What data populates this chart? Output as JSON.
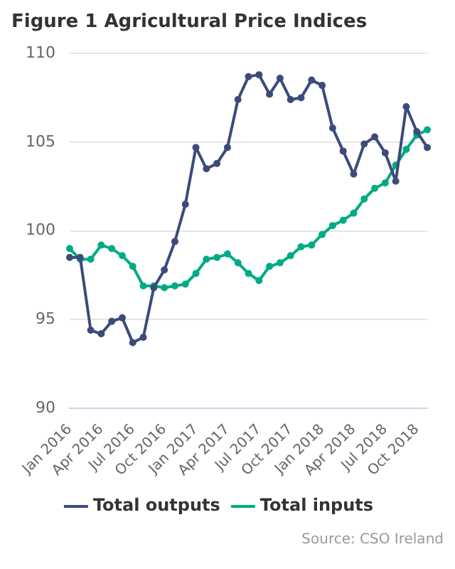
{
  "chart_data": {
    "type": "line",
    "title": "Figure 1 Agricultural Price Indices",
    "categories": [
      "Jan 2016",
      null,
      null,
      "Apr 2016",
      null,
      null,
      "Jul 2016",
      null,
      null,
      "Oct 2016",
      null,
      null,
      "Jan 2017",
      null,
      null,
      "Apr 2017",
      null,
      null,
      "Jul 2017",
      null,
      null,
      "Oct 2017",
      null,
      null,
      "Jan 2018",
      null,
      null,
      "Apr 2018",
      null,
      null,
      "Jul 2018",
      null,
      null,
      "Oct 2018",
      null
    ],
    "series": [
      {
        "name": "Total outputs",
        "color": "#3c4b7c",
        "values": [
          98.5,
          98.5,
          94.4,
          94.2,
          94.9,
          95.1,
          93.7,
          94.0,
          96.8,
          97.8,
          99.4,
          101.5,
          104.7,
          103.5,
          103.8,
          104.7,
          107.4,
          108.7,
          108.8,
          107.7,
          108.6,
          107.4,
          107.5,
          108.5,
          108.2,
          105.8,
          104.5,
          103.2,
          104.9,
          105.3,
          104.4,
          102.8,
          107.0,
          105.6,
          104.7
        ]
      },
      {
        "name": "Total inputs",
        "color": "#00ab84",
        "values": [
          99.0,
          98.4,
          98.4,
          99.2,
          99.0,
          98.6,
          98.0,
          96.9,
          96.9,
          96.8,
          96.9,
          97.0,
          97.6,
          98.4,
          98.5,
          98.7,
          98.2,
          97.6,
          97.2,
          98.0,
          98.2,
          98.6,
          99.1,
          99.2,
          99.8,
          100.3,
          100.6,
          101.0,
          101.8,
          102.4,
          102.7,
          103.7,
          104.6,
          105.4,
          105.7
        ]
      }
    ],
    "ylim": [
      90,
      110
    ],
    "yticks": [
      90,
      95,
      100,
      105,
      110
    ],
    "grid": "y",
    "legend": "bottom",
    "marker": "circle",
    "line_style": "solid",
    "annotations": [
      "Source: CSO Ireland"
    ]
  }
}
